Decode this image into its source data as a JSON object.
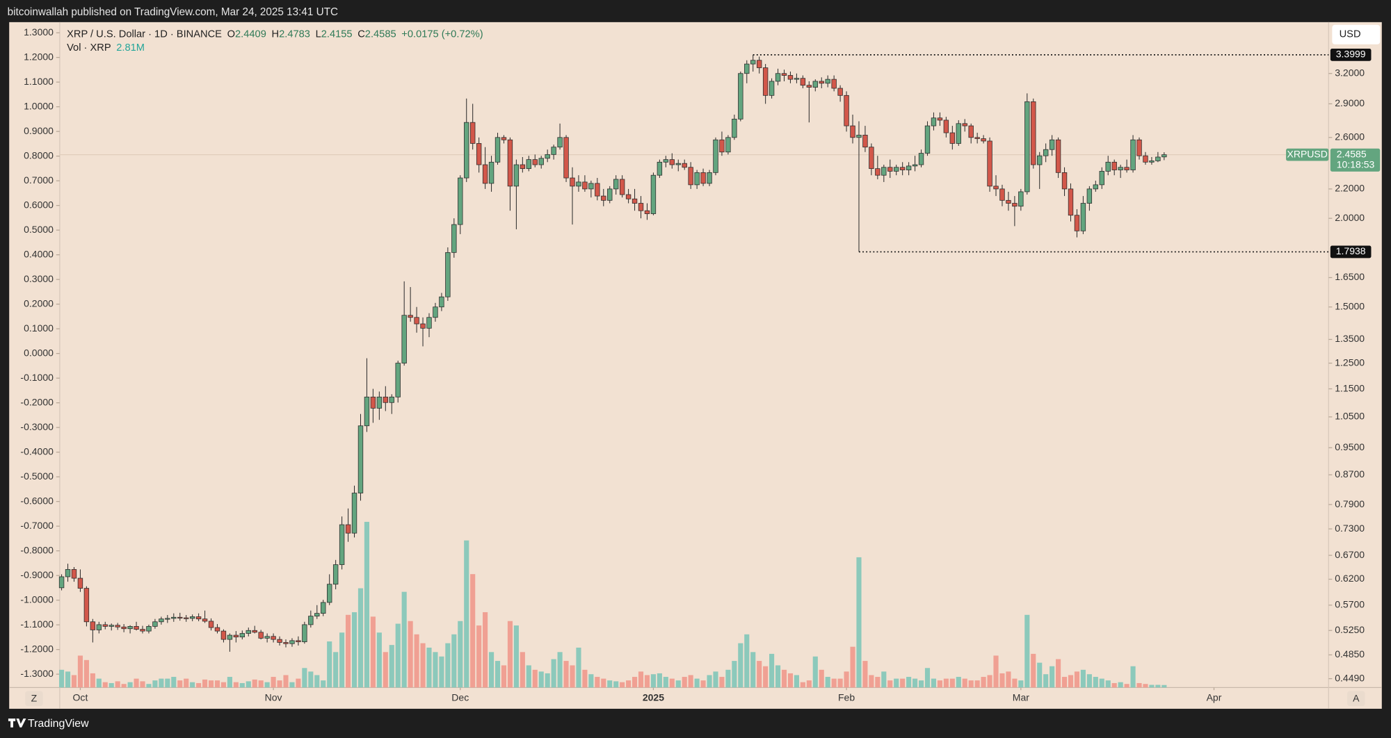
{
  "chart_data": {
    "type": "candlestick",
    "published": "bitcoinwallah published on TradingView.com, Mar 24, 2025 13:41 UTC",
    "title": "XRP / U.S. Dollar · 1D · BINANCE",
    "ohlc_labels": [
      "O",
      "H",
      "L",
      "C"
    ],
    "ohlc": [
      2.4409,
      2.4783,
      2.4155,
      2.4585
    ],
    "change": "+0.0175 (+0.72%)",
    "currency": "USD",
    "symbol": "XRPUSD",
    "countdown": "10:18:53",
    "up_color": "#63a57f",
    "down_color": "#d2574a",
    "candles": [
      [
        0.603,
        0.63,
        0.598,
        0.625
      ],
      [
        0.625,
        0.652,
        0.615,
        0.64
      ],
      [
        0.64,
        0.645,
        0.615,
        0.622
      ],
      [
        0.622,
        0.64,
        0.595,
        0.602
      ],
      [
        0.602,
        0.606,
        0.532,
        0.54
      ],
      [
        0.54,
        0.545,
        0.505,
        0.526
      ],
      [
        0.526,
        0.54,
        0.52,
        0.535
      ],
      [
        0.535,
        0.54,
        0.527,
        0.532
      ],
      [
        0.532,
        0.537,
        0.525,
        0.534
      ],
      [
        0.534,
        0.538,
        0.526,
        0.531
      ],
      [
        0.531,
        0.536,
        0.522,
        0.528
      ],
      [
        0.528,
        0.534,
        0.52,
        0.532
      ],
      [
        0.532,
        0.54,
        0.525,
        0.527
      ],
      [
        0.527,
        0.533,
        0.52,
        0.524
      ],
      [
        0.524,
        0.535,
        0.52,
        0.532
      ],
      [
        0.532,
        0.545,
        0.528,
        0.54
      ],
      [
        0.54,
        0.549,
        0.535,
        0.545
      ],
      [
        0.545,
        0.552,
        0.538,
        0.546
      ],
      [
        0.546,
        0.555,
        0.54,
        0.548
      ],
      [
        0.548,
        0.556,
        0.542,
        0.547
      ],
      [
        0.547,
        0.552,
        0.54,
        0.546
      ],
      [
        0.546,
        0.553,
        0.541,
        0.549
      ],
      [
        0.549,
        0.555,
        0.541,
        0.545
      ],
      [
        0.545,
        0.56,
        0.538,
        0.541
      ],
      [
        0.541,
        0.546,
        0.525,
        0.53
      ],
      [
        0.53,
        0.536,
        0.52,
        0.524
      ],
      [
        0.524,
        0.527,
        0.505,
        0.51
      ],
      [
        0.51,
        0.52,
        0.49,
        0.517
      ],
      [
        0.517,
        0.524,
        0.505,
        0.514
      ],
      [
        0.514,
        0.525,
        0.51,
        0.52
      ],
      [
        0.52,
        0.53,
        0.515,
        0.525
      ],
      [
        0.525,
        0.533,
        0.52,
        0.522
      ],
      [
        0.522,
        0.526,
        0.51,
        0.512
      ],
      [
        0.512,
        0.52,
        0.505,
        0.515
      ],
      [
        0.515,
        0.52,
        0.505,
        0.51
      ],
      [
        0.51,
        0.515,
        0.5,
        0.505
      ],
      [
        0.505,
        0.51,
        0.497,
        0.503
      ],
      [
        0.503,
        0.512,
        0.498,
        0.508
      ],
      [
        0.508,
        0.515,
        0.5,
        0.506
      ],
      [
        0.506,
        0.54,
        0.503,
        0.535
      ],
      [
        0.535,
        0.56,
        0.53,
        0.55
      ],
      [
        0.55,
        0.57,
        0.545,
        0.555
      ],
      [
        0.555,
        0.58,
        0.55,
        0.575
      ],
      [
        0.575,
        0.63,
        0.57,
        0.61
      ],
      [
        0.61,
        0.66,
        0.6,
        0.65
      ],
      [
        0.65,
        0.76,
        0.64,
        0.74
      ],
      [
        0.74,
        0.78,
        0.7,
        0.72
      ],
      [
        0.72,
        0.84,
        0.71,
        0.82
      ],
      [
        0.82,
        1.06,
        0.8,
        1.02
      ],
      [
        1.02,
        1.27,
        1.0,
        1.12
      ],
      [
        1.12,
        1.15,
        1.03,
        1.08
      ],
      [
        1.08,
        1.14,
        1.04,
        1.12
      ],
      [
        1.12,
        1.16,
        1.07,
        1.1
      ],
      [
        1.1,
        1.13,
        1.06,
        1.12
      ],
      [
        1.12,
        1.26,
        1.1,
        1.25
      ],
      [
        1.25,
        1.63,
        1.24,
        1.46
      ],
      [
        1.46,
        1.6,
        1.43,
        1.45
      ],
      [
        1.45,
        1.5,
        1.38,
        1.42
      ],
      [
        1.42,
        1.45,
        1.32,
        1.4
      ],
      [
        1.4,
        1.47,
        1.36,
        1.45
      ],
      [
        1.45,
        1.52,
        1.43,
        1.5
      ],
      [
        1.5,
        1.57,
        1.48,
        1.55
      ],
      [
        1.55,
        1.82,
        1.53,
        1.79
      ],
      [
        1.79,
        2.0,
        1.76,
        1.96
      ],
      [
        1.96,
        2.3,
        1.9,
        2.28
      ],
      [
        2.28,
        2.95,
        2.25,
        2.73
      ],
      [
        2.73,
        2.9,
        2.5,
        2.55
      ],
      [
        2.55,
        2.6,
        2.32,
        2.38
      ],
      [
        2.38,
        2.52,
        2.2,
        2.24
      ],
      [
        2.24,
        2.45,
        2.18,
        2.4
      ],
      [
        2.4,
        2.64,
        2.38,
        2.6
      ],
      [
        2.6,
        2.62,
        2.55,
        2.58
      ],
      [
        2.58,
        2.6,
        2.05,
        2.22
      ],
      [
        2.22,
        2.42,
        1.93,
        2.38
      ],
      [
        2.38,
        2.44,
        2.32,
        2.35
      ],
      [
        2.35,
        2.45,
        2.33,
        2.42
      ],
      [
        2.42,
        2.46,
        2.36,
        2.38
      ],
      [
        2.38,
        2.45,
        2.35,
        2.43
      ],
      [
        2.43,
        2.5,
        2.4,
        2.46
      ],
      [
        2.46,
        2.54,
        2.42,
        2.52
      ],
      [
        2.52,
        2.72,
        2.5,
        2.6
      ],
      [
        2.6,
        2.62,
        2.25,
        2.28
      ],
      [
        2.28,
        2.36,
        1.96,
        2.22
      ],
      [
        2.22,
        2.3,
        2.18,
        2.25
      ],
      [
        2.25,
        2.3,
        2.18,
        2.2
      ],
      [
        2.2,
        2.26,
        2.14,
        2.24
      ],
      [
        2.24,
        2.28,
        2.12,
        2.15
      ],
      [
        2.15,
        2.2,
        2.08,
        2.12
      ],
      [
        2.12,
        2.22,
        2.1,
        2.2
      ],
      [
        2.2,
        2.3,
        2.16,
        2.27
      ],
      [
        2.27,
        2.3,
        2.14,
        2.16
      ],
      [
        2.16,
        2.2,
        2.1,
        2.13
      ],
      [
        2.13,
        2.2,
        2.05,
        2.1
      ],
      [
        2.1,
        2.15,
        2.0,
        2.05
      ],
      [
        2.05,
        2.1,
        1.99,
        2.03
      ],
      [
        2.03,
        2.32,
        2.02,
        2.3
      ],
      [
        2.3,
        2.42,
        2.28,
        2.4
      ],
      [
        2.4,
        2.45,
        2.36,
        2.42
      ],
      [
        2.42,
        2.47,
        2.35,
        2.38
      ],
      [
        2.38,
        2.42,
        2.33,
        2.39
      ],
      [
        2.39,
        2.42,
        2.34,
        2.36
      ],
      [
        2.36,
        2.4,
        2.2,
        2.23
      ],
      [
        2.23,
        2.34,
        2.2,
        2.32
      ],
      [
        2.32,
        2.35,
        2.22,
        2.24
      ],
      [
        2.24,
        2.34,
        2.22,
        2.32
      ],
      [
        2.32,
        2.6,
        2.3,
        2.58
      ],
      [
        2.58,
        2.65,
        2.45,
        2.48
      ],
      [
        2.48,
        2.62,
        2.46,
        2.6
      ],
      [
        2.6,
        2.8,
        2.58,
        2.76
      ],
      [
        2.76,
        3.22,
        2.74,
        3.2
      ],
      [
        3.2,
        3.34,
        3.1,
        3.3
      ],
      [
        3.3,
        3.3999,
        3.22,
        3.34
      ],
      [
        3.34,
        3.38,
        3.2,
        3.26
      ],
      [
        3.26,
        3.3,
        2.9,
        2.98
      ],
      [
        2.98,
        3.15,
        2.95,
        3.12
      ],
      [
        3.12,
        3.25,
        3.08,
        3.2
      ],
      [
        3.2,
        3.24,
        3.12,
        3.18
      ],
      [
        3.18,
        3.22,
        3.1,
        3.14
      ],
      [
        3.14,
        3.2,
        3.1,
        3.15
      ],
      [
        3.15,
        3.18,
        3.05,
        3.08
      ],
      [
        3.08,
        3.12,
        2.73,
        3.06
      ],
      [
        3.06,
        3.14,
        3.02,
        3.12
      ],
      [
        3.12,
        3.16,
        3.05,
        3.1
      ],
      [
        3.1,
        3.18,
        3.06,
        3.14
      ],
      [
        3.14,
        3.18,
        3.02,
        3.05
      ],
      [
        3.05,
        3.08,
        2.92,
        2.98
      ],
      [
        2.98,
        3.02,
        2.65,
        2.7
      ],
      [
        2.7,
        2.8,
        2.55,
        2.6
      ],
      [
        2.6,
        2.74,
        1.7938,
        2.62
      ],
      [
        2.62,
        2.7,
        2.48,
        2.52
      ],
      [
        2.52,
        2.55,
        2.3,
        2.35
      ],
      [
        2.35,
        2.45,
        2.27,
        2.3
      ],
      [
        2.3,
        2.38,
        2.25,
        2.36
      ],
      [
        2.36,
        2.42,
        2.28,
        2.33
      ],
      [
        2.33,
        2.38,
        2.3,
        2.36
      ],
      [
        2.36,
        2.4,
        2.3,
        2.34
      ],
      [
        2.34,
        2.4,
        2.3,
        2.37
      ],
      [
        2.37,
        2.45,
        2.33,
        2.38
      ],
      [
        2.38,
        2.5,
        2.36,
        2.47
      ],
      [
        2.47,
        2.74,
        2.45,
        2.7
      ],
      [
        2.7,
        2.82,
        2.66,
        2.77
      ],
      [
        2.77,
        2.82,
        2.7,
        2.75
      ],
      [
        2.75,
        2.78,
        2.6,
        2.64
      ],
      [
        2.64,
        2.7,
        2.5,
        2.55
      ],
      [
        2.55,
        2.75,
        2.53,
        2.72
      ],
      [
        2.72,
        2.76,
        2.65,
        2.7
      ],
      [
        2.7,
        2.72,
        2.55,
        2.6
      ],
      [
        2.6,
        2.64,
        2.55,
        2.59
      ],
      [
        2.59,
        2.62,
        2.55,
        2.57
      ],
      [
        2.57,
        2.6,
        2.18,
        2.22
      ],
      [
        2.22,
        2.3,
        2.15,
        2.2
      ],
      [
        2.2,
        2.23,
        2.08,
        2.12
      ],
      [
        2.12,
        2.18,
        2.05,
        2.1
      ],
      [
        2.1,
        2.15,
        1.95,
        2.08
      ],
      [
        2.08,
        2.2,
        2.05,
        2.18
      ],
      [
        2.18,
        3.0,
        2.16,
        2.92
      ],
      [
        2.92,
        2.95,
        2.35,
        2.38
      ],
      [
        2.38,
        2.48,
        2.2,
        2.45
      ],
      [
        2.45,
        2.55,
        2.4,
        2.5
      ],
      [
        2.5,
        2.62,
        2.45,
        2.58
      ],
      [
        2.58,
        2.6,
        2.28,
        2.32
      ],
      [
        2.32,
        2.36,
        2.15,
        2.2
      ],
      [
        2.2,
        2.24,
        1.98,
        2.02
      ],
      [
        2.02,
        2.06,
        1.88,
        1.92
      ],
      [
        1.92,
        2.15,
        1.9,
        2.1
      ],
      [
        2.1,
        2.22,
        2.05,
        2.2
      ],
      [
        2.2,
        2.26,
        2.18,
        2.23
      ],
      [
        2.23,
        2.36,
        2.2,
        2.33
      ],
      [
        2.33,
        2.45,
        2.3,
        2.4
      ],
      [
        2.4,
        2.42,
        2.3,
        2.34
      ],
      [
        2.34,
        2.38,
        2.28,
        2.36
      ],
      [
        2.36,
        2.42,
        2.32,
        2.34
      ],
      [
        2.34,
        2.62,
        2.32,
        2.58
      ],
      [
        2.58,
        2.6,
        2.42,
        2.45
      ],
      [
        2.45,
        2.48,
        2.38,
        2.4
      ],
      [
        2.4,
        2.44,
        2.38,
        2.41
      ],
      [
        2.41,
        2.48,
        2.4,
        2.44
      ],
      [
        2.4409,
        2.4783,
        2.4155,
        2.4585
      ]
    ],
    "volume": {
      "name": "Vol · XRP",
      "last_label": "2.81M",
      "up_color": "#8cc9bb",
      "down_color": "#f0a093",
      "values": [
        20,
        18,
        14,
        36,
        31,
        16,
        10,
        6,
        5,
        7,
        4,
        6,
        10,
        7,
        4,
        8,
        10,
        10,
        12,
        8,
        10,
        6,
        5,
        9,
        8,
        8,
        6,
        12,
        6,
        5,
        7,
        9,
        8,
        6,
        12,
        8,
        14,
        6,
        10,
        22,
        18,
        14,
        8,
        52,
        40,
        62,
        82,
        85,
        112,
        187,
        80,
        62,
        40,
        48,
        72,
        108,
        75,
        60,
        50,
        45,
        40,
        35,
        50,
        60,
        75,
        166,
        128,
        70,
        85,
        40,
        30,
        25,
        75,
        70,
        40,
        25,
        20,
        18,
        16,
        32,
        40,
        30,
        25,
        45,
        20,
        15,
        12,
        10,
        8,
        7,
        6,
        8,
        12,
        18,
        14,
        15,
        16,
        12,
        10,
        8,
        12,
        14,
        10,
        8,
        14,
        18,
        12,
        20,
        30,
        50,
        60,
        40,
        30,
        24,
        38,
        25,
        20,
        16,
        14,
        6,
        8,
        35,
        20,
        12,
        10,
        10,
        18,
        46,
        147,
        30,
        14,
        12,
        18,
        8,
        10,
        10,
        12,
        10,
        8,
        22,
        10,
        8,
        10,
        10,
        12,
        10,
        8,
        8,
        12,
        14,
        36,
        16,
        18,
        10,
        8,
        82,
        38,
        28,
        15,
        24,
        32,
        12,
        14,
        18,
        20,
        15,
        12,
        10,
        8,
        5,
        6,
        4,
        24,
        5,
        4,
        3,
        3,
        2.81
      ]
    },
    "log": true,
    "ylim": [
      0.4363,
      3.78
    ],
    "yticks": [
      {
        "value": 3.2,
        "label": "3.2000"
      },
      {
        "value": 2.9,
        "label": "2.9000"
      },
      {
        "value": 2.6,
        "label": "2.6000"
      },
      {
        "value": 2.2,
        "label": "2.2000"
      },
      {
        "value": 2.0,
        "label": "2.0000"
      },
      {
        "value": 1.65,
        "label": "1.6500"
      },
      {
        "value": 1.5,
        "label": "1.5000"
      },
      {
        "value": 1.35,
        "label": "1.3500"
      },
      {
        "value": 1.25,
        "label": "1.2500"
      },
      {
        "value": 1.15,
        "label": "1.1500"
      },
      {
        "value": 1.05,
        "label": "1.0500"
      },
      {
        "value": 0.95,
        "label": "0.9500"
      },
      {
        "value": 0.87,
        "label": "0.8700"
      },
      {
        "value": 0.79,
        "label": "0.7900"
      },
      {
        "value": 0.73,
        "label": "0.7300"
      },
      {
        "value": 0.67,
        "label": "0.6700"
      },
      {
        "value": 0.62,
        "label": "0.6200"
      },
      {
        "value": 0.57,
        "label": "0.5700"
      },
      {
        "value": 0.525,
        "label": "0.5250"
      },
      {
        "value": 0.485,
        "label": "0.4850"
      },
      {
        "value": 0.449,
        "label": "0.4490"
      }
    ],
    "y2lim": [
      -1.354,
      1.343
    ],
    "y2ticks": [
      {
        "value": 1.3,
        "label": "1.3000"
      },
      {
        "value": 1.2,
        "label": "1.2000"
      },
      {
        "value": 1.1,
        "label": "1.1000"
      },
      {
        "value": 1.0,
        "label": "1.0000"
      },
      {
        "value": 0.9,
        "label": "0.9000"
      },
      {
        "value": 0.8,
        "label": "0.8000"
      },
      {
        "value": 0.7,
        "label": "0.7000"
      },
      {
        "value": 0.6,
        "label": "0.6000"
      },
      {
        "value": 0.5,
        "label": "0.5000"
      },
      {
        "value": 0.4,
        "label": "0.4000"
      },
      {
        "value": 0.3,
        "label": "0.3000"
      },
      {
        "value": 0.2,
        "label": "0.2000"
      },
      {
        "value": 0.1,
        "label": "0.1000"
      },
      {
        "value": 0,
        "label": "0.0000"
      },
      {
        "value": -0.1,
        "label": "-0.1000"
      },
      {
        "value": -0.2,
        "label": "-0.2000"
      },
      {
        "value": -0.3,
        "label": "-0.3000"
      },
      {
        "value": -0.4,
        "label": "-0.4000"
      },
      {
        "value": -0.5,
        "label": "-0.5000"
      },
      {
        "value": -0.6,
        "label": "-0.6000"
      },
      {
        "value": -0.7,
        "label": "-0.7000"
      },
      {
        "value": -0.8,
        "label": "-0.8000"
      },
      {
        "value": -0.9,
        "label": "-0.9000"
      },
      {
        "value": -1.0,
        "label": "-1.0000"
      },
      {
        "value": -1.1,
        "label": "-1.1000"
      },
      {
        "value": -1.2,
        "label": "-1.2000"
      },
      {
        "value": -1.3,
        "label": "-1.3000"
      }
    ],
    "xlim": [
      -0.3,
      203.4
    ],
    "xticks": [
      {
        "value": 3,
        "label": "Oct"
      },
      {
        "value": 34,
        "label": "Nov"
      },
      {
        "value": 64,
        "label": "Dec"
      },
      {
        "value": 95,
        "label": "2025"
      },
      {
        "value": 126,
        "label": "Feb"
      },
      {
        "value": 154,
        "label": "Mar"
      },
      {
        "value": 185,
        "label": "Apr"
      }
    ],
    "range_high": 3.3999,
    "range_low": 1.7938,
    "buttons": [
      "Z",
      "A"
    ],
    "brand": "TradingView"
  }
}
